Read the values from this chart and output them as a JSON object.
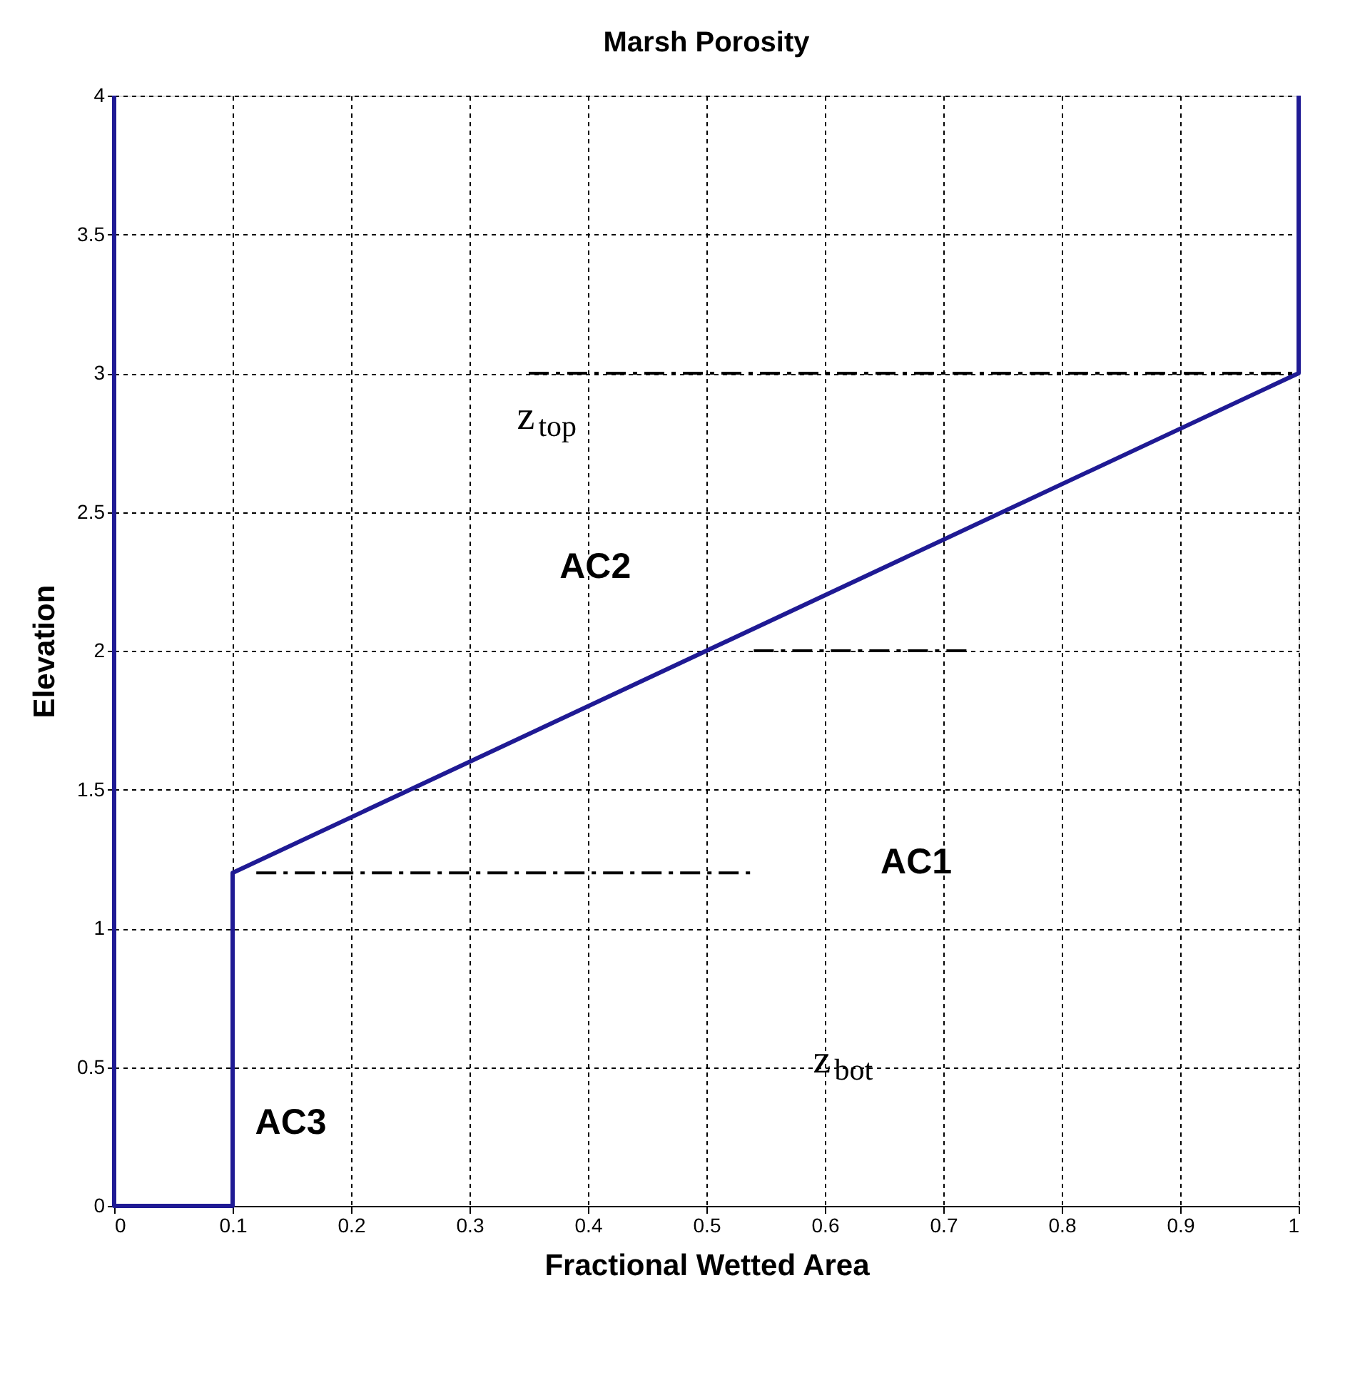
{
  "chart_data": {
    "type": "line",
    "title": "Marsh Porosity",
    "xlabel": "Fractional Wetted Area",
    "ylabel": "Elevation",
    "xlim": [
      0,
      1
    ],
    "xticks": [
      0,
      0.1,
      0.2,
      0.3,
      0.4,
      0.5,
      0.6,
      0.7,
      0.8,
      0.9,
      1
    ],
    "ylim": [
      0,
      4
    ],
    "yticks": [
      0,
      0.5,
      1,
      1.5,
      2,
      2.5,
      3,
      3.5,
      4
    ],
    "grid": true,
    "marker": "none",
    "series": [
      {
        "color": "#1f1a94",
        "x": [
          0,
          0,
          0.1,
          0.1,
          1,
          1
        ],
        "values": [
          4,
          0,
          0,
          1.2,
          3,
          4
        ],
        "line_style": "solid"
      },
      {
        "color": "#000000",
        "x": [
          0.35,
          1
        ],
        "values": [
          3,
          3
        ],
        "line_style": "dashed"
      },
      {
        "color": "#000000",
        "x": [
          0.54,
          0.72
        ],
        "values": [
          2,
          2
        ],
        "line_style": "dashed"
      },
      {
        "color": "#000000",
        "x": [
          0.12,
          0.54
        ],
        "values": [
          1.2,
          1.2
        ],
        "line_style": "dashed"
      }
    ],
    "annotations": [
      "z$_{top}$",
      "AC2",
      "AC1",
      "z$_{bot}$",
      "AC3"
    ]
  }
}
